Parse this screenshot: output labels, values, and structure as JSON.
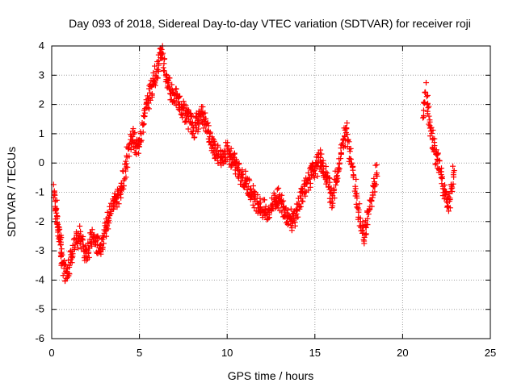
{
  "chart_data": {
    "type": "scatter",
    "title": "Day 093 of 2018, Sidereal Day-to-day VTEC variation (SDTVAR) for receiver roji",
    "xlabel": "GPS time / hours",
    "ylabel": "SDTVAR / TECUs",
    "xlim": [
      0,
      25
    ],
    "ylim": [
      -6,
      4
    ],
    "xticks": [
      "0",
      "5",
      "10",
      "15",
      "20",
      "25"
    ],
    "yticks": [
      "-6",
      "-5",
      "-4",
      "-3",
      "-2",
      "-1",
      "0",
      "1",
      "2",
      "3",
      "4"
    ],
    "grid": true,
    "marker": "+",
    "color": "#ff0000",
    "series": [
      {
        "name": "SDTVAR",
        "description": "dense cluster traces",
        "x": [
          0.15,
          0.2,
          0.25,
          0.3,
          0.35,
          0.4,
          0.45,
          0.5,
          0.55,
          0.6,
          0.7,
          0.8,
          0.9,
          1.0,
          1.1,
          1.2,
          1.3,
          1.4,
          1.5,
          1.6,
          1.7,
          1.8,
          1.9,
          2.0,
          2.1,
          2.2,
          2.3,
          2.4,
          2.5,
          2.6,
          2.7,
          2.8,
          2.9,
          3.0,
          3.1,
          3.2,
          3.3,
          3.4,
          3.5,
          3.6,
          3.7,
          3.8,
          3.9,
          4.0,
          4.1,
          4.2,
          4.3,
          4.4,
          4.5,
          4.6,
          4.7,
          4.8,
          4.9,
          5.0,
          5.1,
          5.2,
          5.3,
          5.4,
          5.5,
          5.6,
          5.7,
          5.8,
          5.9,
          6.0,
          6.1,
          6.2,
          6.3,
          6.4,
          6.5,
          6.6,
          6.7,
          6.8,
          6.9,
          7.0,
          7.1,
          7.2,
          7.3,
          7.4,
          7.5,
          7.6,
          7.7,
          7.8,
          7.9,
          8.0,
          8.1,
          8.2,
          8.3,
          8.4,
          8.5,
          8.6,
          8.7,
          8.8,
          8.9,
          9.0,
          9.1,
          9.2,
          9.3,
          9.4,
          9.5,
          9.6,
          9.7,
          9.8,
          9.9,
          10.0,
          10.1,
          10.2,
          10.3,
          10.4,
          10.5,
          10.6,
          10.7,
          10.8,
          10.9,
          11.0,
          11.1,
          11.2,
          11.3,
          11.4,
          11.5,
          11.6,
          11.7,
          11.8,
          11.9,
          12.0,
          12.1,
          12.2,
          12.3,
          12.4,
          12.5,
          12.6,
          12.7,
          12.8,
          12.9,
          13.0,
          13.1,
          13.2,
          13.3,
          13.4,
          13.5,
          13.6,
          13.7,
          13.8,
          13.9,
          14.0,
          14.1,
          14.2,
          14.3,
          14.4,
          14.5,
          14.6,
          14.7,
          14.8,
          14.9,
          15.0,
          15.1,
          15.2,
          15.3,
          15.4,
          15.5,
          15.6,
          15.7,
          15.8,
          15.9,
          16.0,
          16.1,
          16.2,
          16.3,
          16.4,
          16.5,
          16.6,
          16.7,
          16.8,
          16.9,
          17.0,
          17.1,
          17.2,
          17.3,
          17.4,
          17.5,
          17.6,
          17.7,
          17.8,
          17.9,
          18.0,
          18.1,
          18.2,
          18.3,
          18.4,
          18.5,
          21.2,
          21.3,
          21.4,
          21.5,
          21.6,
          21.7,
          21.8,
          21.9,
          22.0,
          22.1,
          22.2,
          22.3,
          22.4,
          22.5,
          22.6,
          22.7,
          22.8,
          22.9
        ],
        "y": [
          -1.0,
          -1.3,
          -1.6,
          -1.9,
          -2.1,
          -2.3,
          -2.5,
          -2.8,
          -3.1,
          -3.4,
          -3.6,
          -3.7,
          -3.6,
          -3.5,
          -3.3,
          -3.1,
          -2.9,
          -2.7,
          -2.6,
          -2.5,
          -2.6,
          -2.8,
          -3.0,
          -3.0,
          -2.9,
          -2.7,
          -2.6,
          -2.6,
          -2.7,
          -2.8,
          -2.9,
          -2.8,
          -2.6,
          -2.4,
          -2.2,
          -2.0,
          -1.8,
          -1.6,
          -1.4,
          -1.3,
          -1.2,
          -1.1,
          -1.0,
          -0.9,
          -0.6,
          -0.2,
          0.2,
          0.5,
          0.8,
          0.9,
          0.7,
          0.5,
          0.6,
          0.8,
          1.0,
          1.3,
          1.6,
          1.9,
          2.2,
          2.4,
          2.6,
          2.8,
          3.0,
          3.2,
          3.4,
          3.6,
          3.7,
          3.4,
          3.0,
          2.8,
          2.6,
          2.5,
          2.4,
          2.3,
          2.2,
          2.1,
          2.0,
          1.9,
          1.8,
          1.7,
          1.6,
          1.5,
          1.4,
          1.3,
          1.2,
          1.3,
          1.4,
          1.5,
          1.6,
          1.7,
          1.5,
          1.3,
          1.1,
          0.9,
          0.7,
          0.6,
          0.5,
          0.4,
          0.3,
          0.2,
          0.2,
          0.3,
          0.4,
          0.4,
          0.3,
          0.2,
          0.1,
          0.0,
          -0.1,
          -0.2,
          -0.3,
          -0.4,
          -0.5,
          -0.6,
          -0.7,
          -0.8,
          -0.9,
          -1.0,
          -1.1,
          -1.2,
          -1.3,
          -1.4,
          -1.5,
          -1.6,
          -1.6,
          -1.7,
          -1.7,
          -1.6,
          -1.5,
          -1.4,
          -1.3,
          -1.2,
          -1.2,
          -1.3,
          -1.4,
          -1.5,
          -1.6,
          -1.7,
          -1.8,
          -1.9,
          -2.0,
          -1.9,
          -1.8,
          -1.6,
          -1.4,
          -1.2,
          -1.0,
          -0.8,
          -0.7,
          -0.6,
          -0.5,
          -0.4,
          -0.3,
          -0.2,
          -0.1,
          0.0,
          0.1,
          0.0,
          -0.2,
          -0.4,
          -0.6,
          -0.8,
          -1.0,
          -1.2,
          -0.9,
          -0.6,
          -0.3,
          0.0,
          0.3,
          0.6,
          0.9,
          1.2,
          0.8,
          0.4,
          0.0,
          -0.4,
          -0.8,
          -1.2,
          -1.6,
          -2.0,
          -2.3,
          -2.4,
          -2.2,
          -1.9,
          -1.6,
          -1.3,
          -1.0,
          -0.7,
          -0.4,
          1.8,
          2.4,
          2.0,
          1.6,
          1.2,
          0.8,
          0.5,
          0.3,
          0.1,
          -0.2,
          -0.5,
          -0.8,
          -1.1,
          -1.3,
          -1.5,
          -1.2,
          -0.8,
          -0.4
        ]
      }
    ]
  }
}
